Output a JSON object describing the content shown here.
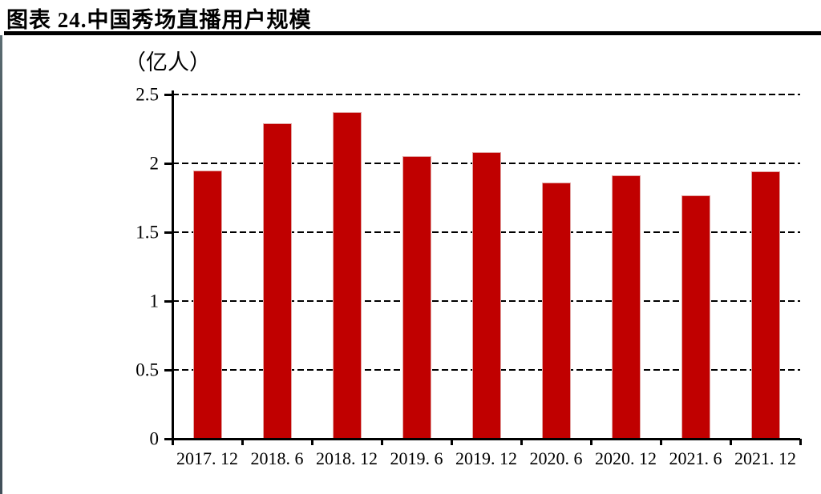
{
  "figure": {
    "title": "图表 24.中国秀场直播用户规模"
  },
  "chart_data": {
    "type": "bar",
    "title": "中国秀场直播用户规模",
    "unit_label": "（亿人）",
    "ylabel": "（亿人）",
    "categories": [
      "2017. 12",
      "2018. 6",
      "2018. 12",
      "2019. 6",
      "2019. 12",
      "2020. 6",
      "2020. 12",
      "2021. 6",
      "2021. 12"
    ],
    "values": [
      1.95,
      2.29,
      2.37,
      2.05,
      2.08,
      1.86,
      1.91,
      1.77,
      1.94
    ],
    "ylim": [
      0,
      2.5
    ],
    "ytick_values": [
      0,
      0.5,
      1,
      1.5,
      2,
      2.5
    ],
    "ytick_labels": [
      "0",
      "0.5",
      "1",
      "1.5",
      "2",
      "2.5"
    ],
    "grid": "horizontal-dashed",
    "legend": null,
    "bar_color": "#c00000"
  },
  "colors": {
    "bar_fill": "#c00000",
    "bar_edge": "#e2a6a4",
    "axis": "#000000",
    "gridline": "#000000",
    "title_rule": "#000000",
    "page_edge": "#46535b"
  }
}
